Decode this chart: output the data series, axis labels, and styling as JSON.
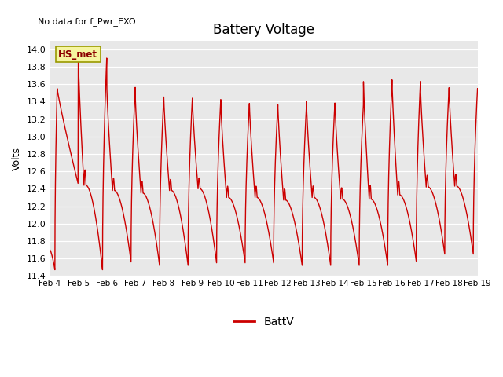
{
  "title": "Battery Voltage",
  "ylabel": "Volts",
  "note": "No data for f_Pwr_EXO",
  "legend_label": "BattV",
  "line_color": "#cc0000",
  "background_color": "#ffffff",
  "plot_bg_color": "#e8e8e8",
  "ylim": [
    11.4,
    14.1
  ],
  "yticks": [
    11.4,
    11.6,
    11.8,
    12.0,
    12.2,
    12.4,
    12.6,
    12.8,
    13.0,
    13.2,
    13.4,
    13.6,
    13.8,
    14.0
  ],
  "xtick_labels": [
    "Feb 4",
    "Feb 5",
    "Feb 6",
    "Feb 7",
    "Feb 8",
    "Feb 9",
    "Feb 10",
    "Feb 11",
    "Feb 12",
    "Feb 13",
    "Feb 14",
    "Feb 15",
    "Feb 16",
    "Feb 17",
    "Feb 18",
    "Feb 19"
  ],
  "annotation_text": "HS_met",
  "cycle_peaks": [
    13.55,
    13.92,
    13.58,
    13.47,
    13.44,
    13.44,
    13.38,
    13.38,
    13.35,
    13.4,
    13.38,
    13.63,
    13.65,
    13.55,
    13.56,
    13.55
  ],
  "cycle_mid_bumps": [
    12.47,
    12.44,
    12.38,
    12.35,
    12.38,
    12.4,
    12.3,
    12.3,
    12.27,
    12.3,
    12.28,
    12.28,
    12.33,
    12.42,
    12.43,
    12.42
  ],
  "cycle_valleys": [
    11.47,
    11.47,
    11.56,
    11.52,
    11.52,
    11.55,
    11.55,
    11.55,
    11.52,
    11.52,
    11.52,
    11.52,
    11.57,
    11.65,
    11.65,
    11.73
  ]
}
